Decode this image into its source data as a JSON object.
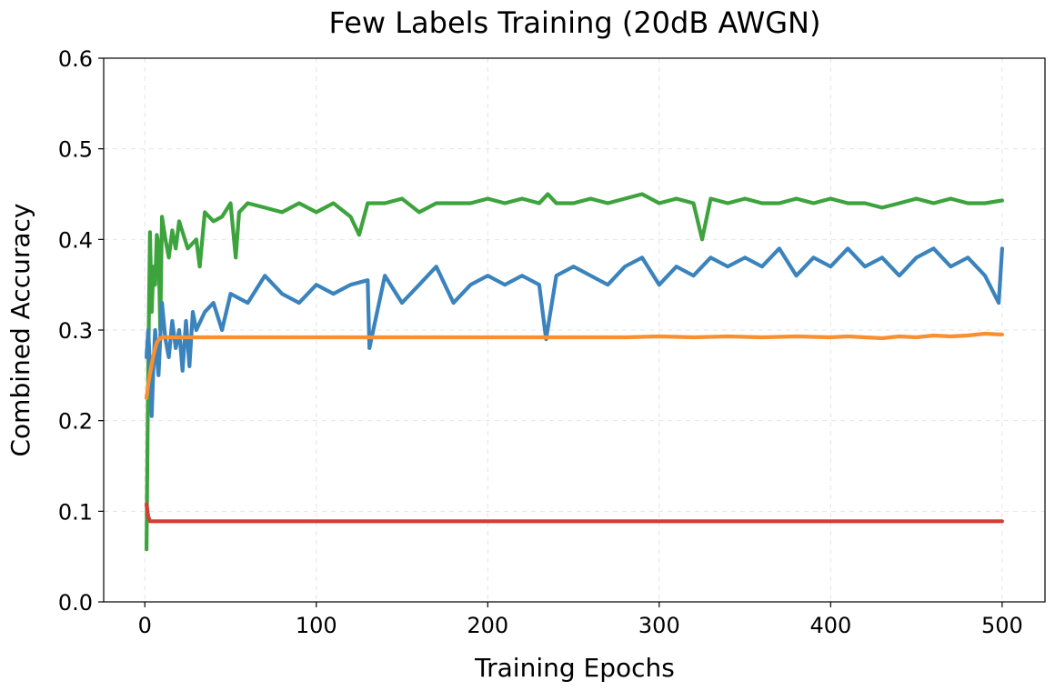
{
  "chart_data": {
    "type": "line",
    "title": "Few Labels Training (20dB AWGN)",
    "xlabel": "Training Epochs",
    "ylabel": "Combined Accuracy",
    "xlim": [
      -24,
      525
    ],
    "ylim": [
      0.0,
      0.6
    ],
    "xticks": [
      0,
      100,
      200,
      300,
      400,
      500
    ],
    "yticks": [
      0.0,
      0.1,
      0.2,
      0.3,
      0.4,
      0.5,
      0.6
    ],
    "xtick_labels": [
      "0",
      "100",
      "200",
      "300",
      "400",
      "500"
    ],
    "ytick_labels": [
      "0.0",
      "0.1",
      "0.2",
      "0.3",
      "0.4",
      "0.5",
      "0.6"
    ],
    "grid": true,
    "series": [
      {
        "name": "series-green",
        "color": "#3da33d",
        "x": [
          1,
          2,
          3,
          4,
          5,
          6,
          7,
          8,
          9,
          10,
          12,
          14,
          16,
          18,
          20,
          25,
          30,
          32,
          35,
          40,
          45,
          50,
          53,
          55,
          60,
          70,
          80,
          90,
          100,
          110,
          120,
          125,
          130,
          140,
          150,
          160,
          170,
          180,
          190,
          200,
          210,
          220,
          230,
          235,
          240,
          250,
          260,
          270,
          280,
          290,
          300,
          310,
          320,
          325,
          330,
          340,
          350,
          360,
          370,
          380,
          390,
          400,
          410,
          420,
          430,
          440,
          450,
          460,
          470,
          480,
          490,
          500
        ],
        "y": [
          0.058,
          0.26,
          0.408,
          0.32,
          0.37,
          0.35,
          0.405,
          0.395,
          0.3,
          0.425,
          0.4,
          0.38,
          0.41,
          0.39,
          0.42,
          0.39,
          0.4,
          0.37,
          0.43,
          0.42,
          0.425,
          0.44,
          0.38,
          0.43,
          0.44,
          0.435,
          0.43,
          0.44,
          0.43,
          0.44,
          0.425,
          0.405,
          0.44,
          0.44,
          0.445,
          0.43,
          0.44,
          0.44,
          0.44,
          0.445,
          0.44,
          0.445,
          0.44,
          0.45,
          0.44,
          0.44,
          0.445,
          0.44,
          0.445,
          0.45,
          0.44,
          0.445,
          0.44,
          0.4,
          0.445,
          0.44,
          0.445,
          0.44,
          0.44,
          0.445,
          0.44,
          0.445,
          0.44,
          0.44,
          0.435,
          0.44,
          0.445,
          0.44,
          0.445,
          0.44,
          0.44,
          0.443
        ]
      },
      {
        "name": "series-blue",
        "color": "#3b83bd",
        "x": [
          1,
          2,
          3,
          4,
          5,
          6,
          7,
          8,
          9,
          10,
          12,
          14,
          16,
          18,
          20,
          22,
          24,
          26,
          28,
          30,
          35,
          40,
          45,
          50,
          60,
          70,
          80,
          90,
          100,
          110,
          120,
          130,
          131,
          140,
          150,
          160,
          170,
          180,
          190,
          200,
          210,
          220,
          230,
          234,
          240,
          250,
          260,
          270,
          280,
          290,
          300,
          310,
          320,
          330,
          340,
          350,
          360,
          370,
          380,
          390,
          400,
          410,
          420,
          430,
          440,
          450,
          460,
          470,
          480,
          490,
          498,
          500
        ],
        "y": [
          0.27,
          0.3,
          0.26,
          0.205,
          0.26,
          0.3,
          0.27,
          0.25,
          0.29,
          0.33,
          0.29,
          0.27,
          0.31,
          0.28,
          0.3,
          0.255,
          0.31,
          0.26,
          0.32,
          0.3,
          0.32,
          0.33,
          0.3,
          0.34,
          0.33,
          0.36,
          0.34,
          0.33,
          0.35,
          0.34,
          0.35,
          0.355,
          0.28,
          0.36,
          0.33,
          0.35,
          0.37,
          0.33,
          0.35,
          0.36,
          0.35,
          0.36,
          0.35,
          0.29,
          0.36,
          0.37,
          0.36,
          0.35,
          0.37,
          0.38,
          0.35,
          0.37,
          0.36,
          0.38,
          0.37,
          0.38,
          0.37,
          0.39,
          0.36,
          0.38,
          0.37,
          0.39,
          0.37,
          0.38,
          0.36,
          0.38,
          0.39,
          0.37,
          0.38,
          0.36,
          0.33,
          0.39
        ]
      },
      {
        "name": "series-orange",
        "color": "#f98f2e",
        "x": [
          1,
          2,
          3,
          4,
          5,
          6,
          7,
          8,
          9,
          10,
          12,
          15,
          20,
          50,
          100,
          150,
          200,
          250,
          280,
          300,
          320,
          340,
          360,
          380,
          400,
          410,
          420,
          430,
          440,
          450,
          460,
          470,
          480,
          490,
          500
        ],
        "y": [
          0.225,
          0.24,
          0.252,
          0.262,
          0.272,
          0.28,
          0.286,
          0.289,
          0.291,
          0.292,
          0.292,
          0.292,
          0.292,
          0.292,
          0.292,
          0.292,
          0.292,
          0.292,
          0.292,
          0.293,
          0.292,
          0.293,
          0.292,
          0.293,
          0.292,
          0.293,
          0.292,
          0.291,
          0.293,
          0.292,
          0.294,
          0.293,
          0.294,
          0.296,
          0.295
        ]
      },
      {
        "name": "series-red",
        "color": "#d63c34",
        "x": [
          1,
          2,
          3,
          5,
          10,
          50,
          100,
          200,
          300,
          400,
          500
        ],
        "y": [
          0.108,
          0.094,
          0.089,
          0.089,
          0.089,
          0.089,
          0.089,
          0.089,
          0.089,
          0.089,
          0.089
        ]
      }
    ]
  }
}
